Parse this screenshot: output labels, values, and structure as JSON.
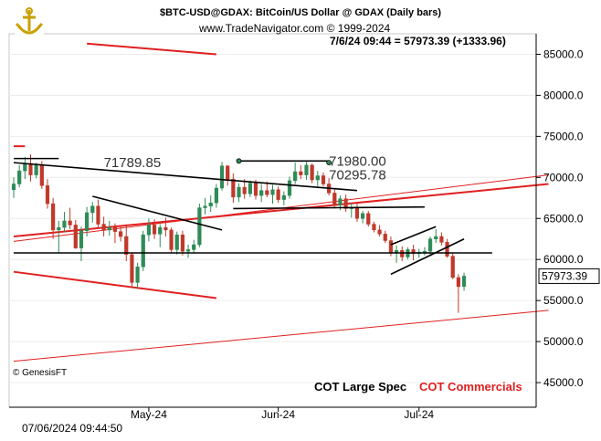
{
  "header": {
    "title": "$BTC-USD@GDAX:  BitCoin/US Dollar @ GDAX  (Daily bars)",
    "website": "www.TradeNavigator.com © 1999-2024",
    "quote": "7/6/24 09:44 = 57973.39 (+1333.96)"
  },
  "footer": {
    "timestamp": "07/06/2024 09:44:50",
    "source": "© GenesisFT",
    "legend_large_spec": "COT Large Spec",
    "legend_commercials": "COT Commercials"
  },
  "colors": {
    "up": "#2e8b57",
    "down": "#c0392b",
    "channel": "#e02020",
    "trendline": "#000000"
  },
  "chart_data": {
    "type": "candlestick",
    "symbol": "$BTC-USD@GDAX",
    "ylim": [
      42000,
      87500
    ],
    "yticks": [
      45000,
      50000,
      55000,
      60000,
      65000,
      70000,
      75000,
      80000,
      85000
    ],
    "ytick_labels": [
      "45000.0",
      "50000.0",
      "55000.0",
      "60000.0",
      "65000.0",
      "70000.0",
      "75000.0",
      "80000.0",
      "85000.0"
    ],
    "xlim": [
      0,
      92
    ],
    "xticks": [
      {
        "index": 24,
        "label": "May-24"
      },
      {
        "index": 47,
        "label": "Jun-24"
      },
      {
        "index": 72,
        "label": "Jul-24"
      }
    ],
    "last_price": 57973.39,
    "last_price_label": "57973.39",
    "candles": [
      {
        "o": 68500,
        "h": 70000,
        "l": 67500,
        "c": 69200
      },
      {
        "o": 69200,
        "h": 71500,
        "l": 68800,
        "c": 70800
      },
      {
        "o": 70800,
        "h": 72500,
        "l": 69800,
        "c": 71700
      },
      {
        "o": 71700,
        "h": 72800,
        "l": 69500,
        "c": 70300
      },
      {
        "o": 70300,
        "h": 71800,
        "l": 69900,
        "c": 71500
      },
      {
        "o": 71500,
        "h": 72000,
        "l": 68600,
        "c": 69000
      },
      {
        "o": 69000,
        "h": 69800,
        "l": 66200,
        "c": 66800
      },
      {
        "o": 66800,
        "h": 67500,
        "l": 62500,
        "c": 63600
      },
      {
        "o": 63600,
        "h": 64700,
        "l": 60800,
        "c": 63900
      },
      {
        "o": 63900,
        "h": 65800,
        "l": 63300,
        "c": 64700
      },
      {
        "o": 64700,
        "h": 66300,
        "l": 63700,
        "c": 64200
      },
      {
        "o": 64200,
        "h": 64800,
        "l": 61300,
        "c": 61400
      },
      {
        "o": 61400,
        "h": 64000,
        "l": 59800,
        "c": 63500
      },
      {
        "o": 63500,
        "h": 66400,
        "l": 62800,
        "c": 65700
      },
      {
        "o": 65700,
        "h": 67000,
        "l": 64500,
        "c": 66500
      },
      {
        "o": 66500,
        "h": 67300,
        "l": 63800,
        "c": 64300
      },
      {
        "o": 64300,
        "h": 65200,
        "l": 62800,
        "c": 63600
      },
      {
        "o": 63600,
        "h": 64700,
        "l": 62900,
        "c": 63900
      },
      {
        "o": 63900,
        "h": 64400,
        "l": 62000,
        "c": 63400
      },
      {
        "o": 63400,
        "h": 64000,
        "l": 62200,
        "c": 62800
      },
      {
        "o": 62800,
        "h": 64300,
        "l": 59800,
        "c": 60600
      },
      {
        "o": 60600,
        "h": 60900,
        "l": 56500,
        "c": 57200
      },
      {
        "o": 57200,
        "h": 59600,
        "l": 56400,
        "c": 59100
      },
      {
        "o": 59100,
        "h": 63500,
        "l": 58600,
        "c": 63000
      },
      {
        "o": 63000,
        "h": 65000,
        "l": 62200,
        "c": 64200
      },
      {
        "o": 64200,
        "h": 64900,
        "l": 62500,
        "c": 63100
      },
      {
        "o": 63100,
        "h": 64300,
        "l": 61500,
        "c": 63900
      },
      {
        "o": 63900,
        "h": 65100,
        "l": 62800,
        "c": 63600
      },
      {
        "o": 63600,
        "h": 63900,
        "l": 60800,
        "c": 61200
      },
      {
        "o": 61200,
        "h": 63400,
        "l": 60600,
        "c": 63000
      },
      {
        "o": 63000,
        "h": 63500,
        "l": 60500,
        "c": 61000
      },
      {
        "o": 61000,
        "h": 61800,
        "l": 60200,
        "c": 61200
      },
      {
        "o": 61200,
        "h": 62400,
        "l": 60700,
        "c": 61800
      },
      {
        "o": 61800,
        "h": 66800,
        "l": 61500,
        "c": 66300
      },
      {
        "o": 66300,
        "h": 67500,
        "l": 65500,
        "c": 66500
      },
      {
        "o": 66500,
        "h": 67800,
        "l": 65800,
        "c": 66900
      },
      {
        "o": 66900,
        "h": 69200,
        "l": 66300,
        "c": 68700
      },
      {
        "o": 68700,
        "h": 71900,
        "l": 68400,
        "c": 71400
      },
      {
        "o": 71400,
        "h": 71500,
        "l": 69000,
        "c": 69800
      },
      {
        "o": 69800,
        "h": 70500,
        "l": 66900,
        "c": 67600
      },
      {
        "o": 67600,
        "h": 69300,
        "l": 67000,
        "c": 68800
      },
      {
        "o": 68800,
        "h": 69800,
        "l": 67400,
        "c": 68000
      },
      {
        "o": 68000,
        "h": 69600,
        "l": 67600,
        "c": 69300
      },
      {
        "o": 69300,
        "h": 69700,
        "l": 67300,
        "c": 67800
      },
      {
        "o": 67800,
        "h": 69200,
        "l": 67000,
        "c": 68400
      },
      {
        "o": 68400,
        "h": 69500,
        "l": 67600,
        "c": 67900
      },
      {
        "o": 67900,
        "h": 69100,
        "l": 66800,
        "c": 68500
      },
      {
        "o": 68500,
        "h": 68900,
        "l": 66900,
        "c": 67300
      },
      {
        "o": 67300,
        "h": 68300,
        "l": 66600,
        "c": 67800
      },
      {
        "o": 67800,
        "h": 70100,
        "l": 67400,
        "c": 69600
      },
      {
        "o": 69600,
        "h": 71800,
        "l": 69200,
        "c": 70700
      },
      {
        "o": 70700,
        "h": 71500,
        "l": 69800,
        "c": 70300
      },
      {
        "o": 70300,
        "h": 71900,
        "l": 69700,
        "c": 71500
      },
      {
        "o": 71500,
        "h": 71700,
        "l": 69300,
        "c": 69700
      },
      {
        "o": 69700,
        "h": 70800,
        "l": 68900,
        "c": 70200
      },
      {
        "o": 70200,
        "h": 70600,
        "l": 68900,
        "c": 69200
      },
      {
        "o": 69200,
        "h": 69900,
        "l": 67800,
        "c": 68100
      },
      {
        "o": 68100,
        "h": 68600,
        "l": 66200,
        "c": 66600
      },
      {
        "o": 66600,
        "h": 67800,
        "l": 66000,
        "c": 67400
      },
      {
        "o": 67400,
        "h": 67900,
        "l": 65800,
        "c": 66200
      },
      {
        "o": 66200,
        "h": 66900,
        "l": 65100,
        "c": 66300
      },
      {
        "o": 66300,
        "h": 66800,
        "l": 64600,
        "c": 65000
      },
      {
        "o": 65000,
        "h": 65900,
        "l": 64400,
        "c": 65600
      },
      {
        "o": 65600,
        "h": 65900,
        "l": 64000,
        "c": 64300
      },
      {
        "o": 64300,
        "h": 64600,
        "l": 63300,
        "c": 63600
      },
      {
        "o": 63600,
        "h": 64200,
        "l": 62800,
        "c": 63100
      },
      {
        "o": 63100,
        "h": 63500,
        "l": 62000,
        "c": 62300
      },
      {
        "o": 62300,
        "h": 62800,
        "l": 60400,
        "c": 60800
      },
      {
        "o": 60800,
        "h": 61700,
        "l": 59600,
        "c": 61100
      },
      {
        "o": 61100,
        "h": 61600,
        "l": 59800,
        "c": 60300
      },
      {
        "o": 60300,
        "h": 61500,
        "l": 60000,
        "c": 61200
      },
      {
        "o": 61200,
        "h": 61800,
        "l": 59900,
        "c": 60700
      },
      {
        "o": 60700,
        "h": 61300,
        "l": 60200,
        "c": 60900
      },
      {
        "o": 60900,
        "h": 61500,
        "l": 60500,
        "c": 61000
      },
      {
        "o": 61000,
        "h": 62800,
        "l": 60600,
        "c": 62500
      },
      {
        "o": 62500,
        "h": 63700,
        "l": 62000,
        "c": 62800
      },
      {
        "o": 62800,
        "h": 63300,
        "l": 61700,
        "c": 62100
      },
      {
        "o": 62100,
        "h": 62500,
        "l": 60200,
        "c": 60400
      },
      {
        "o": 60400,
        "h": 60800,
        "l": 57600,
        "c": 57800
      },
      {
        "o": 57800,
        "h": 58200,
        "l": 53500,
        "c": 56700
      },
      {
        "o": 56700,
        "h": 58400,
        "l": 56200,
        "c": 57973
      }
    ],
    "annotations": [
      {
        "text": "71789.85",
        "x": 16,
        "y": 71790
      },
      {
        "text": "71980.00",
        "x": 56,
        "y": 71980
      },
      {
        "text": "70295.78",
        "x": 56,
        "y": 70296
      }
    ],
    "lines": [
      {
        "x1": 0,
        "y1": 71800,
        "x2": 61,
        "y2": 68400,
        "color": "trendline"
      },
      {
        "x1": 0,
        "y1": 72300,
        "x2": 8,
        "y2": 72300,
        "color": "trendline"
      },
      {
        "x1": 14,
        "y1": 67700,
        "x2": 37,
        "y2": 63600,
        "color": "trendline"
      },
      {
        "x1": 40,
        "y1": 72000,
        "x2": 56,
        "y2": 72000,
        "color": "trendline"
      },
      {
        "x1": 39,
        "y1": 66200,
        "x2": 73,
        "y2": 66400,
        "color": "trendline"
      },
      {
        "x1": 0,
        "y1": 60800,
        "x2": 85,
        "y2": 60800,
        "color": "trendline"
      },
      {
        "x1": 67,
        "y1": 58200,
        "x2": 80,
        "y2": 62500,
        "color": "trendline"
      },
      {
        "x1": 67,
        "y1": 61800,
        "x2": 75,
        "y2": 64000,
        "color": "trendline"
      },
      {
        "x1": 0,
        "y1": 62800,
        "x2": 95,
        "y2": 69200,
        "color": "channel",
        "width": 2
      },
      {
        "x1": 0,
        "y1": 62200,
        "x2": 95,
        "y2": 70300,
        "color": "channel",
        "width": 1
      },
      {
        "x1": 0,
        "y1": 58500,
        "x2": 36,
        "y2": 55300,
        "color": "channel",
        "width": 2
      },
      {
        "x1": 0,
        "y1": 47600,
        "x2": 95,
        "y2": 53800,
        "color": "channel",
        "width": 1
      },
      {
        "x1": 13,
        "y1": 86300,
        "x2": 36,
        "y2": 85000,
        "color": "channel",
        "width": 2
      },
      {
        "x1": 0,
        "y1": 73800,
        "x2": 2,
        "y2": 73800,
        "color": "channel",
        "width": 2
      }
    ],
    "markers": [
      {
        "x": 40,
        "y": 72000
      },
      {
        "x": 56,
        "y": 71800
      }
    ]
  }
}
